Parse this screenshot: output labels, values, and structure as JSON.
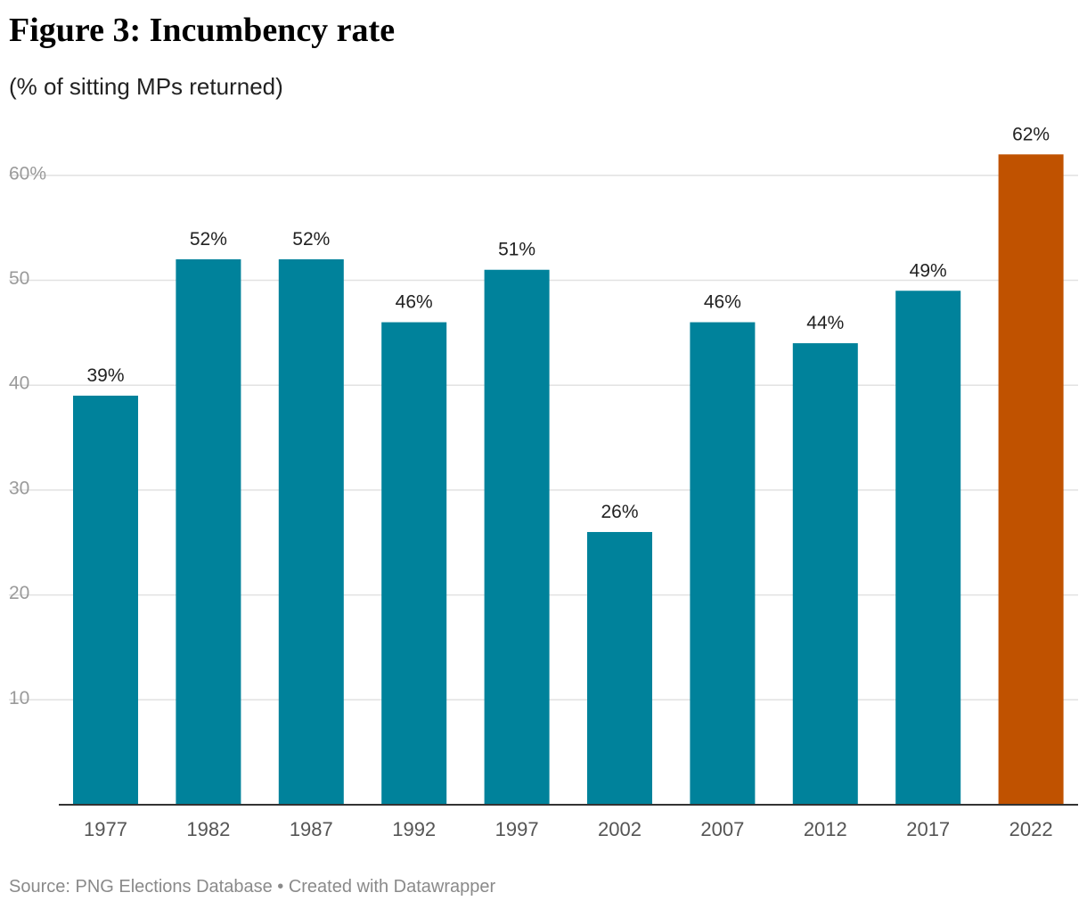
{
  "header": {
    "title": "Figure 3: Incumbency rate",
    "subtitle": "(% of sitting MPs returned)"
  },
  "footer": {
    "source": "Source: PNG Elections Database",
    "separator": " • ",
    "credit": "Created with Datawrapper"
  },
  "colors": {
    "bar": "#00829b",
    "highlight": "#c05200"
  },
  "chart_data": {
    "type": "bar",
    "categories": [
      "1977",
      "1982",
      "1987",
      "1992",
      "1997",
      "2002",
      "2007",
      "2012",
      "2017",
      "2022"
    ],
    "values": [
      39,
      52,
      52,
      46,
      51,
      26,
      46,
      44,
      49,
      62
    ],
    "data_labels": [
      "39%",
      "52%",
      "52%",
      "46%",
      "51%",
      "26%",
      "46%",
      "44%",
      "49%",
      "62%"
    ],
    "highlighted_category": "2022",
    "ylim": [
      0,
      62
    ],
    "yticks": [
      10,
      20,
      30,
      40,
      50,
      60
    ],
    "ytick_labels": [
      "10",
      "20",
      "30",
      "40",
      "50",
      "60%"
    ],
    "grid": true,
    "xlabel": "",
    "ylabel": ""
  }
}
